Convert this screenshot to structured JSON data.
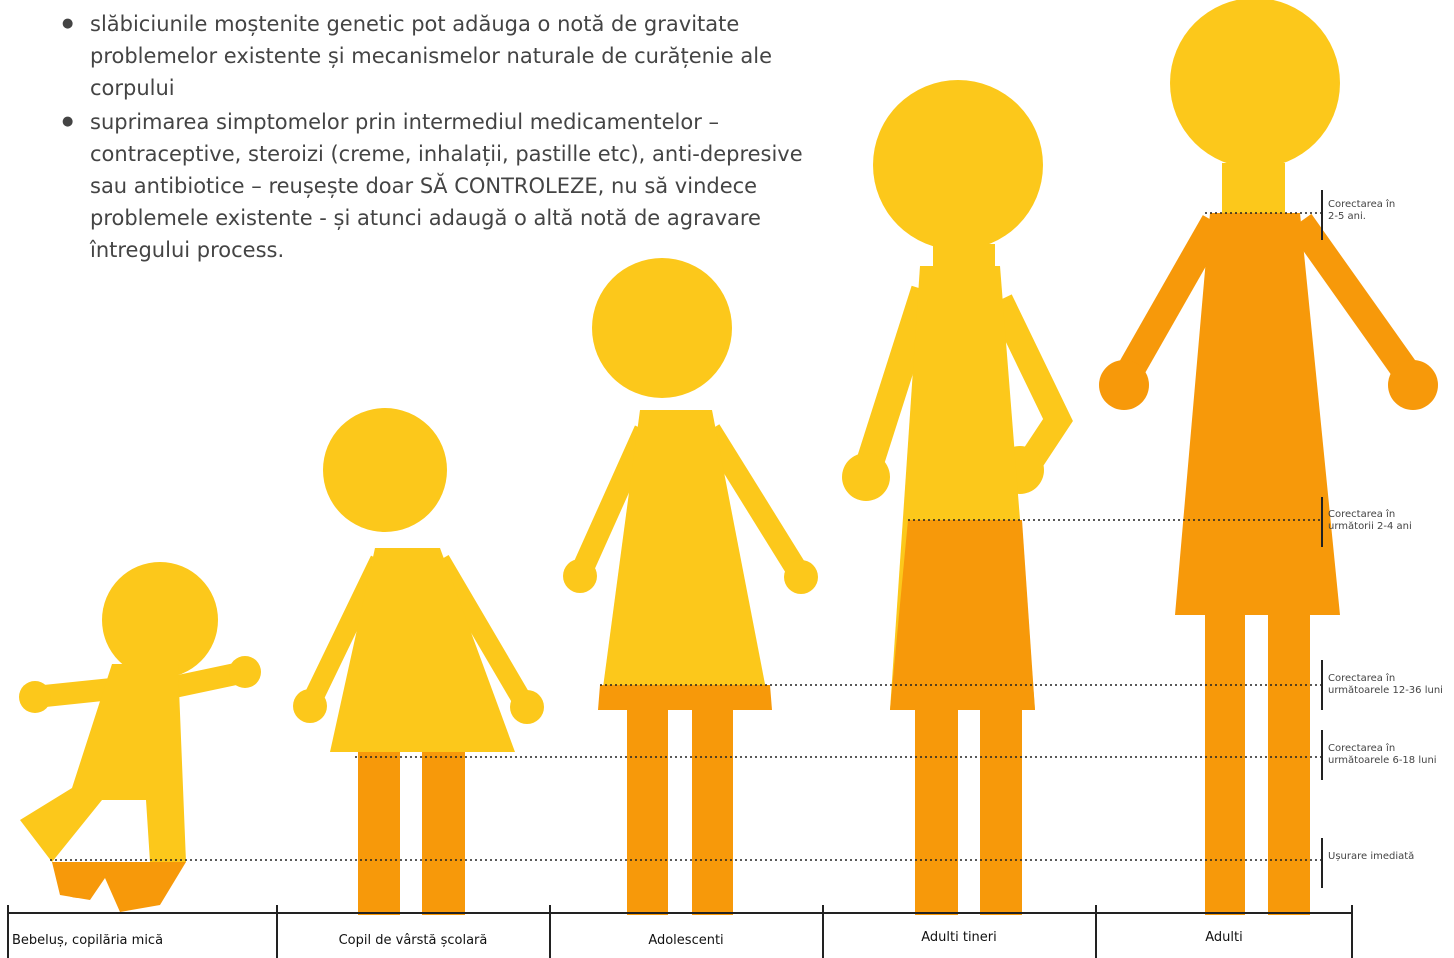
{
  "bullets": [
    "slăbiciunile moștenite genetic pot adăuga o notă de gravitate problemelor existente și mecanismelor naturale de curățenie ale corpului",
    "suprimarea simptomelor prin intermediul medicamentelor – contraceptive, steroizi (creme, inhalații, pastille etc), anti-depresive sau antibiotice – reușește doar SĂ CONTROLEZE, nu să vindece problemele existente - și atunci adaugă o altă notă de agravare întregului process."
  ],
  "annotations": [
    "Corectarea în 2-5 ani.",
    "Corectarea în următorii 2-4 ani",
    "Corectarea în următoarele 12-36 luni",
    "Corectarea în următoarele 6-18 luni",
    "Ușurare imediată"
  ],
  "stages": [
    "Bebeluș, copilăria mică",
    "Copil de vârstă școlară",
    "Adolescenti",
    "Adulti tineri",
    "Adulti"
  ]
}
